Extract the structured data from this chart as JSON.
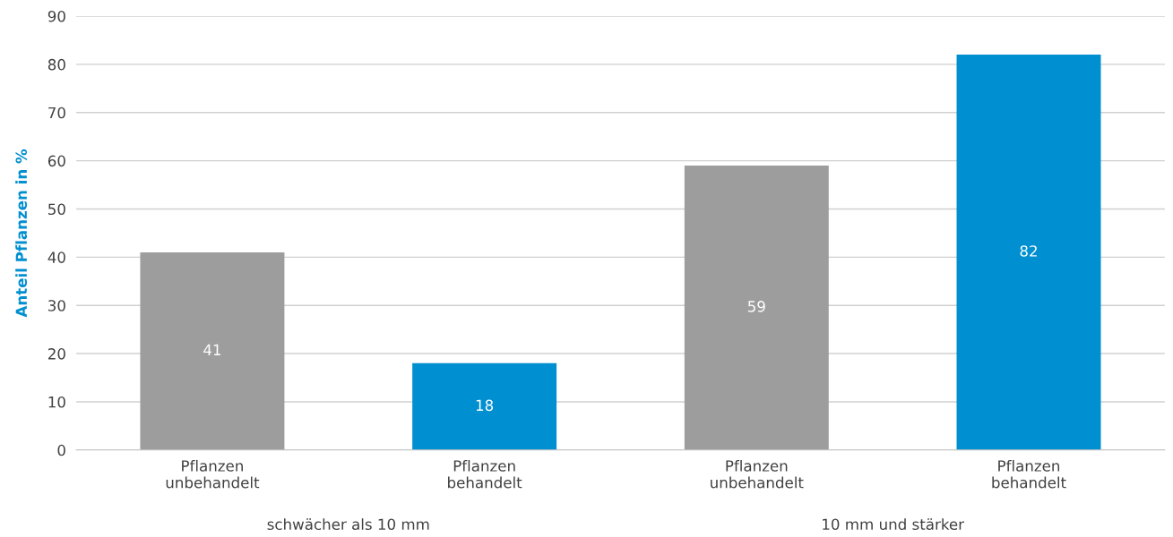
{
  "chart_data": {
    "type": "bar",
    "ylabel": "Anteil Pflanzen in %",
    "categories": [
      "Pflanzen\nunbehandelt",
      "Pflanzen\nbehandelt",
      "Pflanzen\nunbehandelt",
      "Pflanzen\nbehandelt"
    ],
    "values": [
      41,
      18,
      59,
      82
    ],
    "colors": [
      "#9d9d9d",
      "#008fd0",
      "#9d9d9d",
      "#008fd0"
    ],
    "ylim": [
      0,
      90
    ],
    "yticks": [
      0,
      10,
      20,
      30,
      40,
      50,
      60,
      70,
      80,
      90
    ],
    "grid": "y",
    "data_labels": true,
    "annotations": [
      "schwächer als 10 mm",
      "10 mm und stärker"
    ]
  }
}
